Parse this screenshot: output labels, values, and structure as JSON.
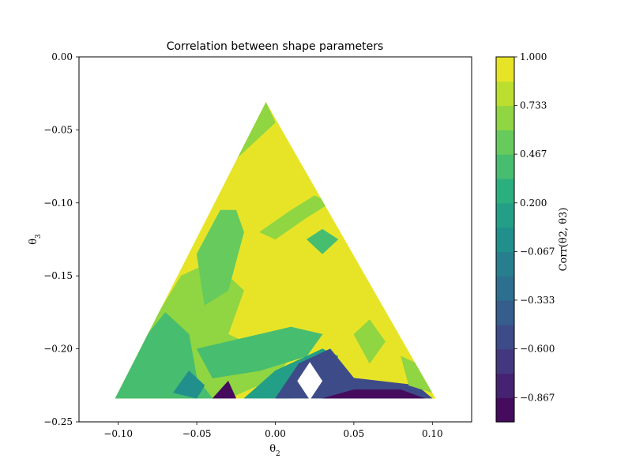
{
  "chart_data": {
    "type": "heatmap",
    "title": "Correlation between shape parameters",
    "xlabel": "θ2",
    "ylabel": "θ3",
    "colorbar_label": "Corr(θ2, θ3)",
    "xlim": [
      -0.125,
      0.125
    ],
    "ylim": [
      -0.25,
      0.0
    ],
    "x_ticks": [
      -0.1,
      -0.05,
      0.0,
      0.05,
      0.1
    ],
    "x_tick_labels": [
      "−0.10",
      "−0.05",
      "0.00",
      "0.05",
      "0.10"
    ],
    "y_ticks": [
      0.0,
      -0.05,
      -0.1,
      -0.15,
      -0.2,
      -0.25
    ],
    "y_tick_labels": [
      "0.00",
      "−0.05",
      "−0.10",
      "−0.15",
      "−0.20",
      "−0.25"
    ],
    "colorbar_range": [
      -1.0,
      1.0
    ],
    "colorbar_ticks": [
      1.0,
      0.733,
      0.467,
      0.2,
      -0.067,
      -0.333,
      -0.6,
      -0.867
    ],
    "colorbar_tick_labels": [
      "1.000",
      "0.733",
      "0.467",
      "0.200",
      "−0.067",
      "−0.333",
      "−0.600",
      "−0.867"
    ],
    "levels": 15,
    "colormap": "viridis",
    "domain_triangle": [
      [
        -0.102,
        -0.234
      ],
      [
        0.102,
        -0.234
      ],
      [
        -0.006,
        -0.031
      ]
    ],
    "regions": [
      {
        "value": 0.95,
        "polygon": [
          [
            -0.102,
            -0.234
          ],
          [
            0.102,
            -0.234
          ],
          [
            -0.006,
            -0.031
          ]
        ]
      },
      {
        "value": 0.6,
        "polygon": [
          [
            -0.102,
            -0.234
          ],
          [
            -0.077,
            -0.18
          ],
          [
            -0.06,
            -0.15
          ],
          [
            -0.04,
            -0.14
          ],
          [
            -0.02,
            -0.16
          ],
          [
            -0.03,
            -0.19
          ],
          [
            -0.01,
            -0.2
          ],
          [
            0.0,
            -0.19
          ],
          [
            0.01,
            -0.205
          ],
          [
            0.0,
            -0.22
          ],
          [
            -0.03,
            -0.234
          ]
        ]
      },
      {
        "value": 0.4,
        "polygon": [
          [
            -0.102,
            -0.234
          ],
          [
            -0.085,
            -0.195
          ],
          [
            -0.07,
            -0.175
          ],
          [
            -0.055,
            -0.19
          ],
          [
            -0.05,
            -0.22
          ],
          [
            -0.04,
            -0.234
          ]
        ]
      },
      {
        "value": 0.55,
        "polygon": [
          [
            -0.05,
            -0.135
          ],
          [
            -0.035,
            -0.105
          ],
          [
            -0.025,
            -0.105
          ],
          [
            -0.02,
            -0.12
          ],
          [
            -0.03,
            -0.16
          ],
          [
            -0.045,
            -0.17
          ]
        ]
      },
      {
        "value": 0.7,
        "polygon": [
          [
            -0.03,
            -0.06
          ],
          [
            -0.018,
            -0.042
          ],
          [
            -0.006,
            -0.031
          ],
          [
            0.0,
            -0.045
          ],
          [
            -0.015,
            -0.06
          ],
          [
            -0.025,
            -0.07
          ]
        ]
      },
      {
        "value": 0.7,
        "polygon": [
          [
            -0.01,
            -0.12
          ],
          [
            0.01,
            -0.105
          ],
          [
            0.025,
            -0.095
          ],
          [
            0.035,
            -0.1
          ],
          [
            0.02,
            -0.11
          ],
          [
            0.0,
            -0.125
          ]
        ]
      },
      {
        "value": 0.35,
        "polygon": [
          [
            0.02,
            -0.125
          ],
          [
            0.03,
            -0.118
          ],
          [
            0.04,
            -0.125
          ],
          [
            0.03,
            -0.135
          ]
        ]
      },
      {
        "value": 0.7,
        "polygon": [
          [
            0.05,
            -0.19
          ],
          [
            0.06,
            -0.18
          ],
          [
            0.07,
            -0.195
          ],
          [
            0.06,
            -0.21
          ]
        ]
      },
      {
        "value": 0.4,
        "polygon": [
          [
            -0.05,
            -0.2
          ],
          [
            -0.03,
            -0.195
          ],
          [
            0.01,
            -0.185
          ],
          [
            0.03,
            -0.19
          ],
          [
            0.02,
            -0.205
          ],
          [
            -0.01,
            -0.215
          ],
          [
            -0.04,
            -0.22
          ]
        ]
      },
      {
        "value": 0.1,
        "polygon": [
          [
            -0.02,
            -0.234
          ],
          [
            0.0,
            -0.215
          ],
          [
            0.03,
            -0.2
          ],
          [
            0.04,
            -0.205
          ],
          [
            0.03,
            -0.225
          ],
          [
            0.01,
            -0.234
          ]
        ]
      },
      {
        "value": -0.5,
        "polygon": [
          [
            0.015,
            -0.21
          ],
          [
            0.035,
            -0.2
          ],
          [
            0.05,
            -0.22
          ],
          [
            0.09,
            -0.225
          ],
          [
            0.1,
            -0.234
          ],
          [
            0.0,
            -0.234
          ]
        ]
      },
      {
        "value": -0.95,
        "polygon": [
          [
            0.03,
            -0.234
          ],
          [
            0.05,
            -0.228
          ],
          [
            0.08,
            -0.228
          ],
          [
            0.095,
            -0.234
          ]
        ]
      },
      {
        "value": 0.05,
        "polygon": [
          [
            -0.065,
            -0.23
          ],
          [
            -0.055,
            -0.215
          ],
          [
            -0.045,
            -0.225
          ],
          [
            -0.05,
            -0.234
          ]
        ]
      },
      {
        "value": -0.9,
        "polygon": [
          [
            -0.04,
            -0.234
          ],
          [
            -0.03,
            -0.222
          ],
          [
            -0.025,
            -0.234
          ]
        ]
      },
      {
        "value": 0.6,
        "polygon": [
          [
            0.08,
            -0.205
          ],
          [
            0.09,
            -0.21
          ],
          [
            0.1,
            -0.23
          ],
          [
            0.085,
            -0.225
          ]
        ]
      }
    ],
    "masked_regions": [
      {
        "polygon": [
          [
            0.022,
            -0.209
          ],
          [
            0.03,
            -0.222
          ],
          [
            0.022,
            -0.235
          ],
          [
            0.014,
            -0.222
          ]
        ]
      }
    ]
  }
}
